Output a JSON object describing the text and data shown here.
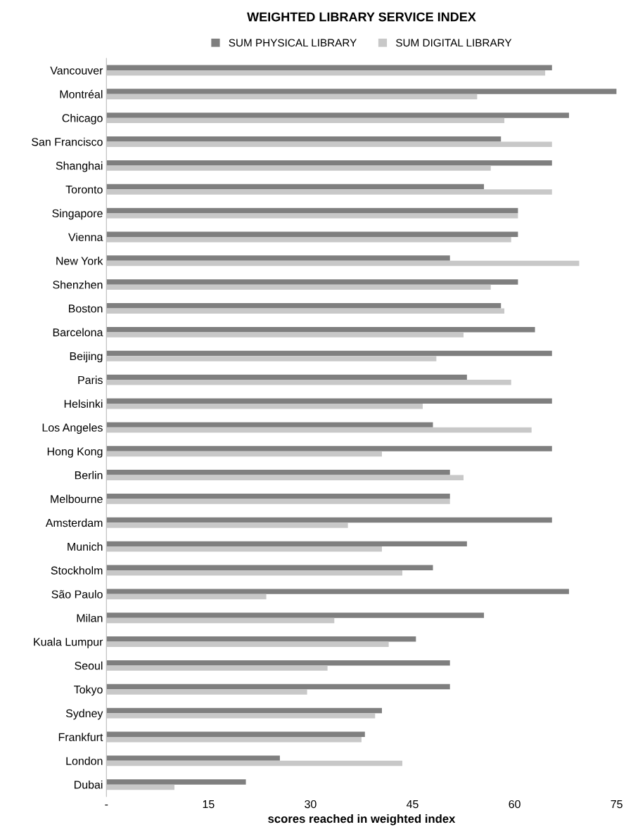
{
  "chart_data": {
    "type": "bar",
    "orientation": "horizontal",
    "title": "WEIGHTED LIBRARY SERVICE INDEX",
    "xlabel": "scores reached in weighted index",
    "categories": [
      "Vancouver",
      "Montréal",
      "Chicago",
      "San Francisco",
      "Shanghai",
      "Toronto",
      "Singapore",
      "Vienna",
      "New York",
      "Shenzhen",
      "Boston",
      "Barcelona",
      "Beijing",
      "Paris",
      "Helsinki",
      "Los Angeles",
      "Hong Kong",
      "Berlin",
      "Melbourne",
      "Amsterdam",
      "Munich",
      "Stockholm",
      "São Paulo",
      "Milan",
      "Kuala Lumpur",
      "Seoul",
      "Tokyo",
      "Sydney",
      "Frankfurt",
      "London",
      "Dubai"
    ],
    "series": [
      {
        "name": "SUM PHYSICAL LIBRARY",
        "color": "#7f7f7f",
        "values": [
          65.5,
          75,
          68,
          58,
          65.5,
          55.5,
          60.5,
          60.5,
          50.5,
          60.5,
          58,
          63,
          65.5,
          53,
          65.5,
          48,
          65.5,
          50.5,
          50.5,
          65.5,
          53,
          48,
          68,
          55.5,
          45.5,
          50.5,
          50.5,
          40.5,
          38,
          25.5,
          20.5
        ]
      },
      {
        "name": "SUM DIGITAL LIBRARY",
        "color": "#c8c8c8",
        "values": [
          64.5,
          54.5,
          58.5,
          65.5,
          56.5,
          65.5,
          60.5,
          59.5,
          69.5,
          56.5,
          58.5,
          52.5,
          48.5,
          59.5,
          46.5,
          62.5,
          40.5,
          52.5,
          50.5,
          35.5,
          40.5,
          43.5,
          23.5,
          33.5,
          41.5,
          32.5,
          29.5,
          39.5,
          37.5,
          43.5,
          10
        ]
      }
    ],
    "xlim": [
      0,
      75
    ],
    "xticks": [
      {
        "value": 0,
        "label": "-"
      },
      15,
      30,
      45,
      60,
      75
    ],
    "legend": "top",
    "grid": false
  }
}
